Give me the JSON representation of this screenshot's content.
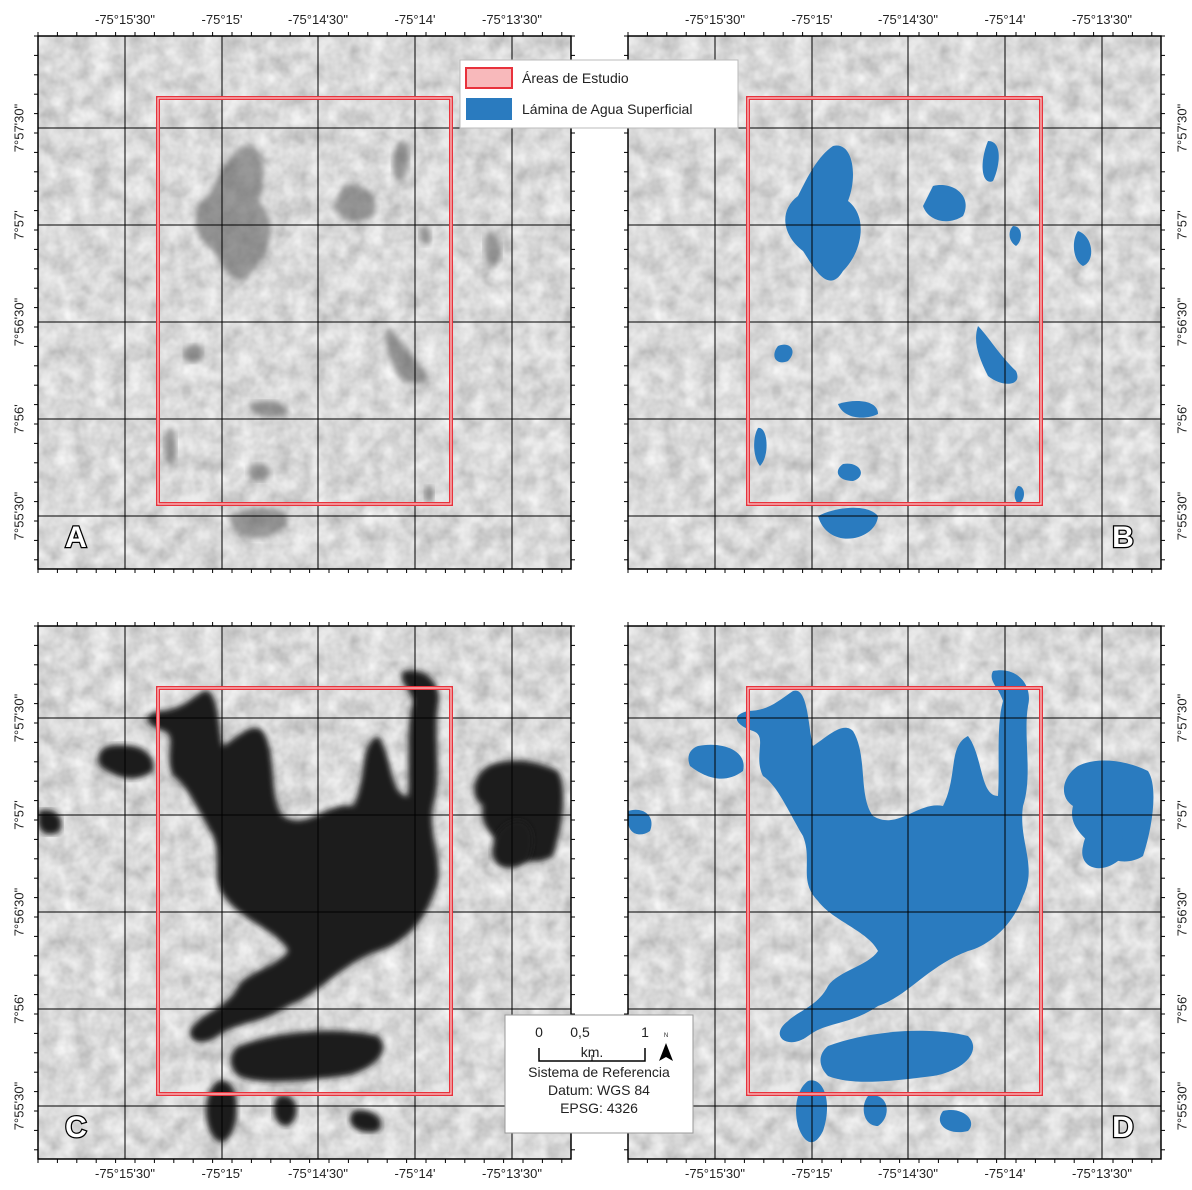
{
  "panels": [
    {
      "label": "A"
    },
    {
      "label": "B"
    },
    {
      "label": "C"
    },
    {
      "label": "D"
    }
  ],
  "x_labels": [
    "-75°15'30\"",
    "-75°15'",
    "-75°14'30\"",
    "-75°14'",
    "-75°13'30\""
  ],
  "y_labels": [
    "7°57'30\"",
    "7°57'",
    "7°56'30\"",
    "7°56'",
    "7°55'30\""
  ],
  "legend": {
    "items": [
      "Áreas de Estudio",
      "Lámina de Agua Superficial"
    ]
  },
  "scale_bar": {
    "ticks": [
      "0",
      "0,5",
      "1"
    ],
    "unit": "km.",
    "north": "N",
    "reference": [
      "Sistema de Referencia",
      "Datum: WGS 84",
      "EPSG: 4326"
    ]
  }
}
